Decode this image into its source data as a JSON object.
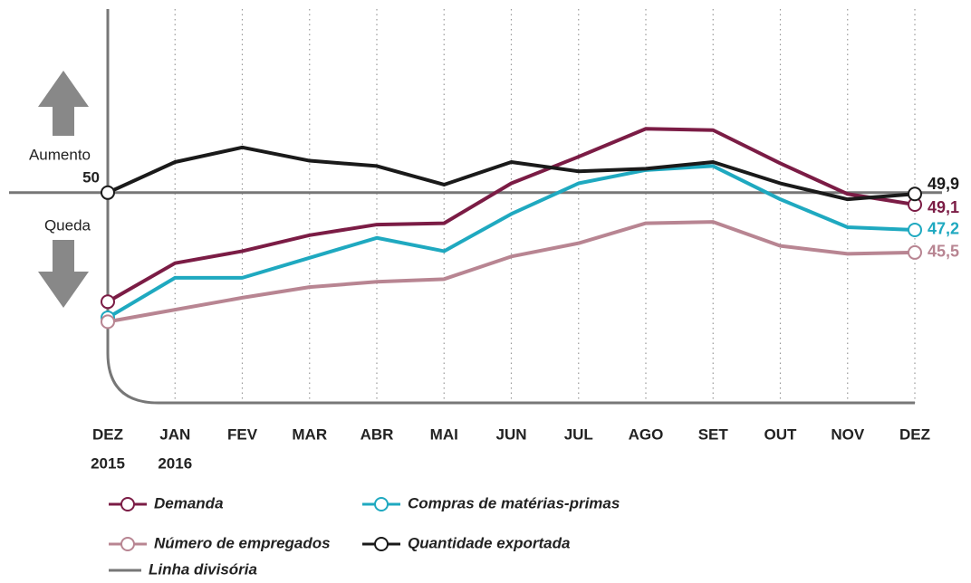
{
  "chart_data": {
    "type": "line",
    "categories": [
      "DEZ",
      "JAN",
      "FEV",
      "MAR",
      "ABR",
      "MAI",
      "JUN",
      "JUL",
      "AGO",
      "SET",
      "OUT",
      "NOV",
      "DEZ"
    ],
    "category_years": [
      "2015",
      "2016",
      null,
      null,
      null,
      null,
      null,
      null,
      null,
      null,
      null,
      null,
      null
    ],
    "ylim": [
      34.2,
      63.8
    ],
    "yticks": [
      50
    ],
    "annotations": {
      "up": "Aumento",
      "down": "Queda"
    },
    "divider_label": "Linha divisória",
    "divider_color": "#777777",
    "series": [
      {
        "name": "Demanda",
        "color": "#7b1c45",
        "values": [
          41.8,
          44.7,
          45.6,
          46.8,
          47.6,
          47.7,
          50.7,
          52.7,
          54.8,
          54.7,
          52.2,
          49.9,
          49.1
        ],
        "value_labels": [
          null,
          null,
          null,
          null,
          null,
          null,
          null,
          null,
          null,
          null,
          null,
          null,
          "49,1"
        ]
      },
      {
        "name": "Compras de matérias-primas",
        "color": "#1fa9c0",
        "values": [
          40.6,
          43.6,
          43.6,
          45.1,
          46.6,
          45.6,
          48.4,
          50.7,
          51.7,
          52.0,
          49.5,
          47.4,
          47.2
        ],
        "value_labels": [
          null,
          null,
          null,
          null,
          null,
          null,
          null,
          null,
          null,
          null,
          null,
          null,
          "47,2"
        ]
      },
      {
        "name": "Número de empregados",
        "color": "#b88592",
        "values": [
          40.3,
          41.2,
          42.1,
          42.9,
          43.3,
          43.5,
          45.2,
          46.2,
          47.7,
          47.8,
          46.0,
          45.4,
          45.5
        ],
        "value_labels": [
          null,
          null,
          null,
          null,
          null,
          null,
          null,
          null,
          null,
          null,
          null,
          null,
          "45,5"
        ]
      },
      {
        "name": "Quantidade exportada",
        "color": "#1a1a1a",
        "values": [
          50.0,
          52.3,
          53.4,
          52.4,
          52.0,
          50.6,
          52.3,
          51.6,
          51.8,
          52.3,
          50.7,
          49.5,
          49.9
        ],
        "value_labels": [
          null,
          null,
          null,
          null,
          null,
          null,
          null,
          null,
          null,
          null,
          null,
          null,
          "49,9"
        ]
      }
    ]
  }
}
